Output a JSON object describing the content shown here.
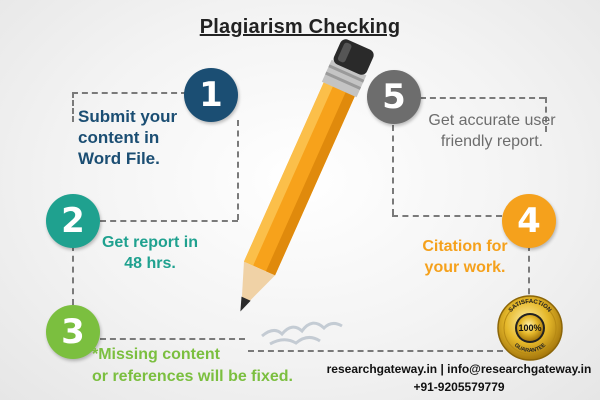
{
  "title": "Plagiarism Checking",
  "steps": [
    {
      "number": "1",
      "text_lines": [
        "Submit your",
        "content in",
        "Word File."
      ],
      "color": "#1b4e73"
    },
    {
      "number": "2",
      "text_lines": [
        "Get report in",
        "48 hrs."
      ],
      "color": "#1fa18f"
    },
    {
      "number": "3",
      "text_lines": [
        "*Missing content",
        "or references will be fixed."
      ],
      "color": "#7bbf3f"
    },
    {
      "number": "4",
      "text_lines": [
        "Citation for",
        "your work."
      ],
      "color": "#f5a11c"
    },
    {
      "number": "5",
      "text_lines": [
        "Get accurate user",
        "friendly report."
      ],
      "color": "#6d6d6d"
    }
  ],
  "badge": {
    "top_text": "SATISFACTION",
    "center_text": "100%",
    "bottom_text": "GUARANTEE"
  },
  "contact": {
    "line1": "researchgateway.in | info@researchgateway.in",
    "line2": "+91-9205579779"
  }
}
